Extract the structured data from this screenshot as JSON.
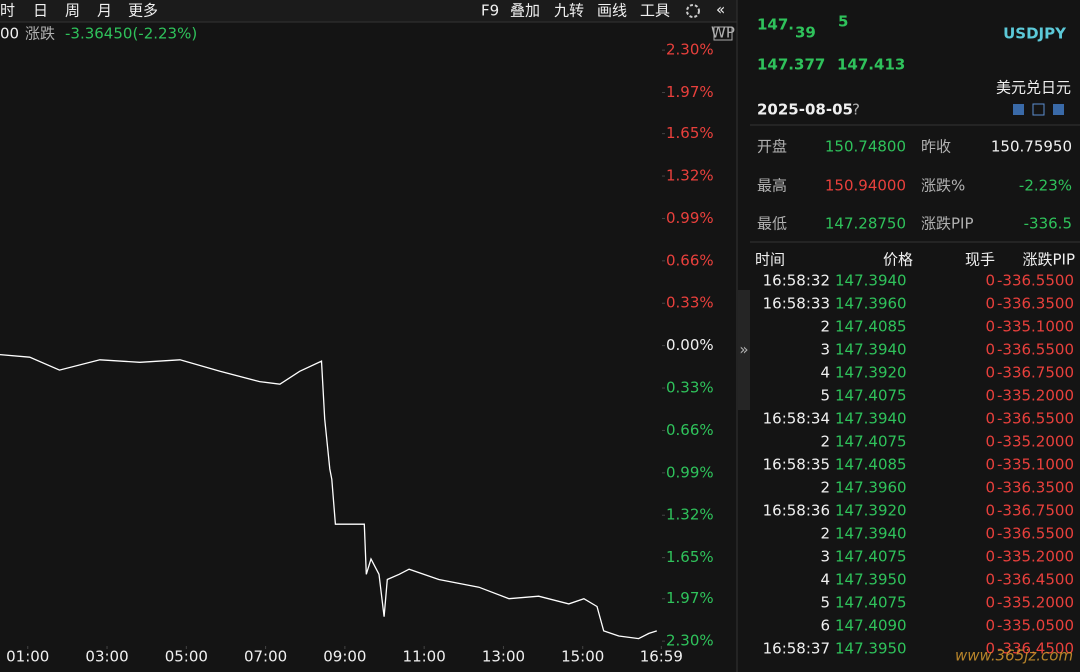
{
  "toolbar": {
    "left": [
      "时",
      "日",
      "周",
      "月",
      "更多"
    ],
    "right": [
      "F9",
      "叠加",
      "九转",
      "画线",
      "工具"
    ],
    "collapse": "«"
  },
  "info_bar": {
    "prefix": "00",
    "label": "涨跌",
    "value": "-3.36450(-2.23%)",
    "badge": "WP"
  },
  "chart": {
    "color": "#ffffff",
    "x": [
      0.3,
      1.05,
      1.8,
      2.82,
      3.83,
      4.84,
      5.85,
      6.85,
      7.36,
      7.86,
      8.41,
      8.49,
      8.62,
      8.67,
      8.76,
      9.49,
      9.54,
      9.66,
      9.86,
      9.99,
      10.07,
      10.37,
      10.62,
      11.37,
      12.38,
      13.14,
      13.89,
      14.65,
      15.03,
      15.36,
      15.53,
      15.91,
      16.41,
      16.67,
      16.87
    ],
    "values": [
      -0.07,
      -0.09,
      -0.19,
      -0.11,
      -0.13,
      -0.11,
      -0.2,
      -0.28,
      -0.3,
      -0.2,
      -0.12,
      -0.57,
      -0.96,
      -1.04,
      -1.39,
      -1.39,
      -1.78,
      -1.66,
      -1.78,
      -2.11,
      -1.82,
      -1.78,
      -1.74,
      -1.82,
      -1.88,
      -1.97,
      -1.95,
      -2.01,
      -1.97,
      -2.03,
      -2.22,
      -2.26,
      -2.28,
      -2.24,
      -2.22
    ],
    "xlim": [
      0.3,
      17.0
    ],
    "ylim": [
      -2.33,
      2.41
    ],
    "xticks": [
      {
        "value": 1,
        "label": "01:00"
      },
      {
        "value": 3,
        "label": "03:00"
      },
      {
        "value": 5,
        "label": "05:00"
      },
      {
        "value": 7,
        "label": "07:00"
      },
      {
        "value": 9,
        "label": "09:00"
      },
      {
        "value": 11,
        "label": "11:00"
      },
      {
        "value": 13,
        "label": "13:00"
      },
      {
        "value": 15,
        "label": "15:00"
      },
      {
        "value": 16.983,
        "label": "16:59"
      }
    ],
    "yticks": [
      {
        "value": 2.3,
        "label": "2.30%"
      },
      {
        "value": 1.97,
        "label": "1.97%"
      },
      {
        "value": 1.65,
        "label": "1.65%"
      },
      {
        "value": 1.32,
        "label": "1.32%"
      },
      {
        "value": 0.99,
        "label": "0.99%"
      },
      {
        "value": 0.66,
        "label": "0.66%"
      },
      {
        "value": 0.33,
        "label": "0.33%"
      },
      {
        "value": 0,
        "label": "0.00%"
      },
      {
        "value": -0.33,
        "label": "0.33%"
      },
      {
        "value": -0.66,
        "label": "0.66%"
      },
      {
        "value": -0.99,
        "label": "0.99%"
      },
      {
        "value": -1.32,
        "label": "1.32%"
      },
      {
        "value": -1.65,
        "label": "1.65%"
      },
      {
        "value": -1.97,
        "label": "1.97%"
      },
      {
        "value": -2.3,
        "label": "2.30%"
      }
    ]
  },
  "quote": {
    "price_main": "147.",
    "price_big": "39",
    "price_small": "5",
    "symbol": "USDJPY",
    "bid": "147.377",
    "ask": "147.413",
    "name": "美元兑日元",
    "date": "2025-08-05",
    "help": "?"
  },
  "stats": [
    [
      "开盘",
      "150.74800",
      "昨收",
      "150.75950"
    ],
    [
      "最高",
      "150.94000",
      "涨跌%",
      "-2.23%"
    ],
    [
      "最低",
      "147.28750",
      "涨跌PIP",
      "-336.5"
    ]
  ],
  "ticks": {
    "header": [
      "时间",
      "价格",
      "现手",
      "涨跌PIP"
    ],
    "rows": [
      [
        "16:58:32",
        "147.3940",
        "0",
        "-336.5500"
      ],
      [
        "16:58:33",
        "147.3960",
        "0",
        "-336.3500"
      ],
      [
        "2",
        "147.4085",
        "0",
        "-335.1000"
      ],
      [
        "3",
        "147.3940",
        "0",
        "-336.5500"
      ],
      [
        "4",
        "147.3920",
        "0",
        "-336.7500"
      ],
      [
        "5",
        "147.4075",
        "0",
        "-335.2000"
      ],
      [
        "16:58:34",
        "147.3940",
        "0",
        "-336.5500"
      ],
      [
        "2",
        "147.4075",
        "0",
        "-335.2000"
      ],
      [
        "16:58:35",
        "147.4085",
        "0",
        "-335.1000"
      ],
      [
        "2",
        "147.3960",
        "0",
        "-336.3500"
      ],
      [
        "16:58:36",
        "147.3920",
        "0",
        "-336.7500"
      ],
      [
        "2",
        "147.3940",
        "0",
        "-336.5500"
      ],
      [
        "3",
        "147.4075",
        "0",
        "-335.2000"
      ],
      [
        "4",
        "147.3950",
        "0",
        "-336.4500"
      ],
      [
        "5",
        "147.4075",
        "0",
        "-335.2000"
      ],
      [
        "6",
        "147.4090",
        "0",
        "-335.0500"
      ],
      [
        "16:58:37",
        "147.3950",
        "0",
        "-336.4500"
      ]
    ]
  },
  "watermark": "www.365jz.com"
}
